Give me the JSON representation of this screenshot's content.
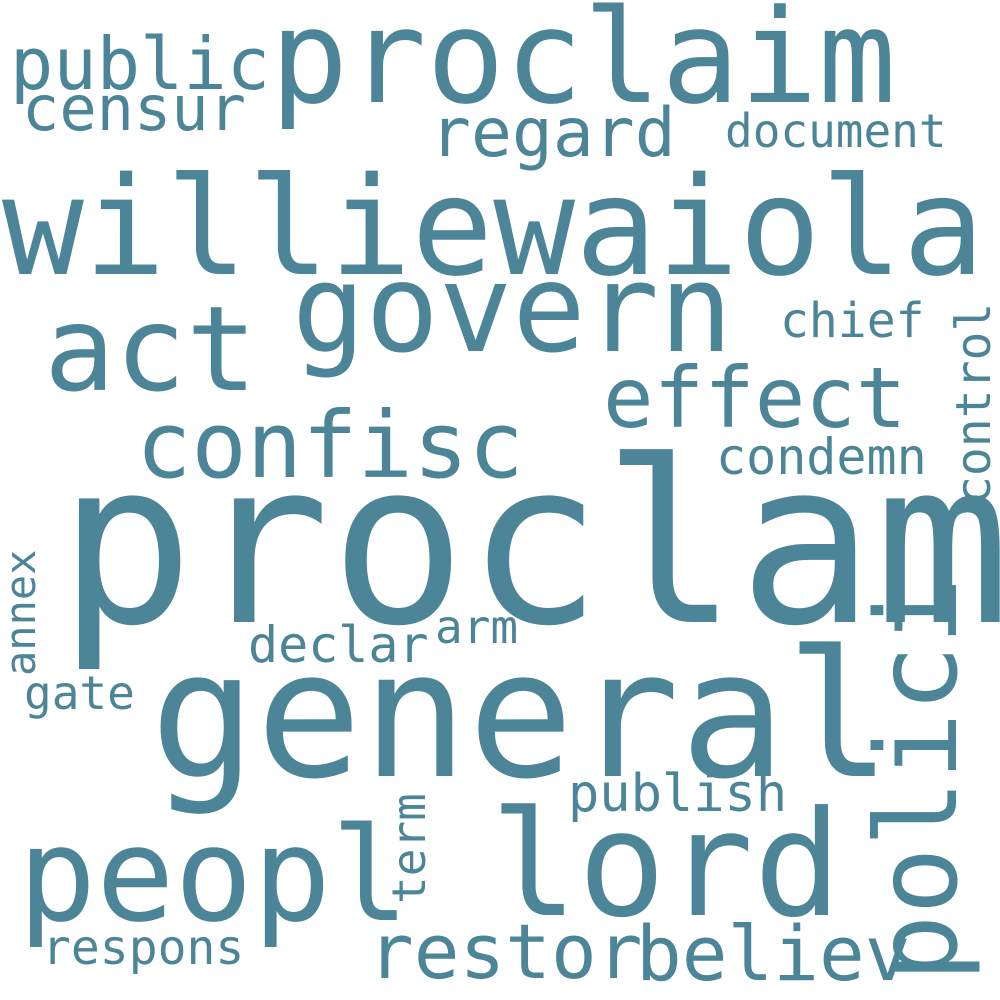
{
  "style": {
    "background": "#ffffff",
    "word_color": "#4b8597"
  },
  "words": {
    "proclaim": "proclaim",
    "public": "public",
    "censur": "censur",
    "regard": "regard",
    "document": "document",
    "williewaiola": "williewaiola",
    "govern": "govern",
    "act": "act",
    "chief": "chief",
    "control": "control",
    "effect": "effect",
    "confisc": "confisc",
    "condemn": "condemn",
    "proclam": "proclam",
    "annex": "annex",
    "arm": "arm",
    "declar": "declar",
    "gate": "gate",
    "general": "general",
    "polici": "polici",
    "publish": "publish",
    "term": "term",
    "peopl": "peopl",
    "lord": "lord",
    "respons": "respons",
    "restor": "restor",
    "believ": "believ"
  }
}
